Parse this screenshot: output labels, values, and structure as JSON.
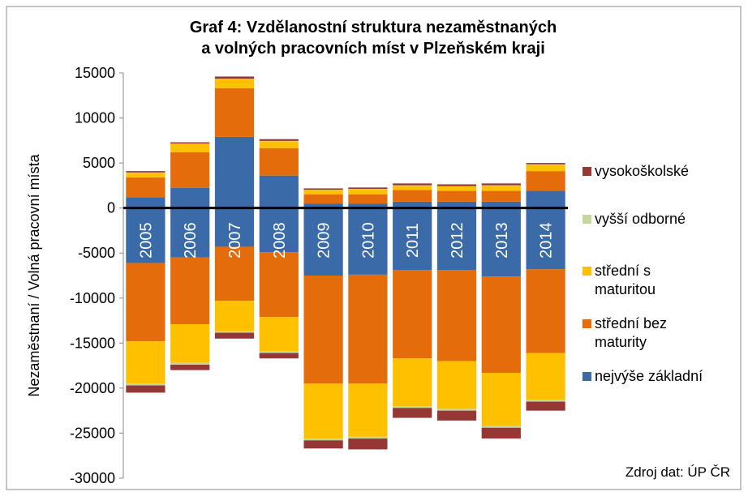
{
  "chart_data": {
    "type": "stacked-bar",
    "title": "Graf 4: Vzdělanostní struktura nezaměstnaných",
    "subtitle": "a volných pracovních míst v Plzeňském kraji",
    "y_label": "Nezaměstnaní / Volná pracovní místa",
    "source": "Zdroj dat: ÚP ČR",
    "categories": [
      "2005",
      "2006",
      "2007",
      "2008",
      "2009",
      "2010",
      "2011",
      "2012",
      "2013",
      "2014"
    ],
    "ylim": [
      -30000,
      15000
    ],
    "yticks": [
      -30000,
      -25000,
      -20000,
      -15000,
      -10000,
      -5000,
      0,
      5000,
      10000,
      15000
    ],
    "series": [
      {
        "name": "nejvýše základní",
        "color": "#3a6aa8",
        "values": [
          1200,
          2250,
          7900,
          3600,
          500,
          500,
          700,
          700,
          700,
          1900
        ],
        "values_unemployed": [
          -6100,
          -5500,
          -4300,
          -4900,
          -7500,
          -7400,
          -6900,
          -6900,
          -7600,
          -6800
        ]
      },
      {
        "name": "střední bez maturity",
        "color": "#e46c0a",
        "values": [
          2200,
          3950,
          5400,
          3050,
          1000,
          1000,
          1300,
          1200,
          1200,
          2200
        ],
        "values_unemployed": [
          -8700,
          -7400,
          -6000,
          -7200,
          -12000,
          -12100,
          -9800,
          -10100,
          -10700,
          -9300
        ]
      },
      {
        "name": "střední s maturitou",
        "color": "#ffc000",
        "values": [
          500,
          900,
          1000,
          750,
          500,
          600,
          500,
          500,
          600,
          700
        ],
        "values_unemployed": [
          -4700,
          -4300,
          -3400,
          -3800,
          -6100,
          -5900,
          -5300,
          -5300,
          -5900,
          -5200
        ]
      },
      {
        "name": "vyšší odborné",
        "color": "#c3d69b",
        "values": [
          50,
          50,
          50,
          50,
          30,
          30,
          30,
          30,
          30,
          50
        ],
        "values_unemployed": [
          -200,
          -200,
          -150,
          -200,
          -200,
          -200,
          -200,
          -200,
          -200,
          -200
        ]
      },
      {
        "name": "vysokoškolské",
        "color": "#953735",
        "values": [
          150,
          150,
          250,
          200,
          150,
          150,
          200,
          200,
          200,
          150
        ],
        "values_unemployed": [
          -800,
          -600,
          -650,
          -600,
          -900,
          -1200,
          -1100,
          -1100,
          -1200,
          -1000
        ]
      }
    ]
  }
}
